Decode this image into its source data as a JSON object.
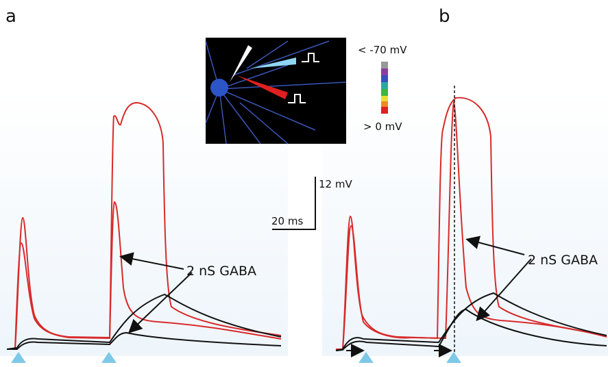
{
  "panels": {
    "a": {
      "label": "a",
      "annotation": "2 nS GABA"
    },
    "b": {
      "label": "b",
      "annotation": "2 nS GABA"
    }
  },
  "scale_bar": {
    "voltage": "12 mV",
    "time": "20 ms"
  },
  "inset": {
    "colorbar_top": "< -70 mV",
    "colorbar_bottom": "> 0 mV"
  }
}
